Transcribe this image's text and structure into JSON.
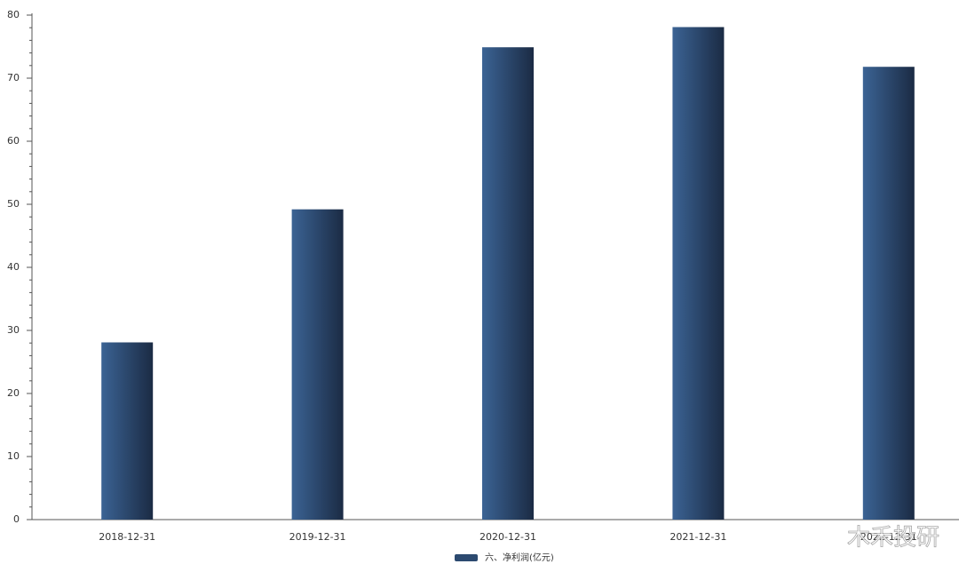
{
  "chart_data": {
    "type": "bar",
    "categories": [
      "2018-12-31",
      "2019-12-31",
      "2020-12-31",
      "2021-12-31",
      "2022-12-31"
    ],
    "series": [
      {
        "name": "六、净利润(亿元)",
        "color": "#2c4a70",
        "values": [
          28.1,
          49.2,
          74.9,
          78.1,
          71.8
        ]
      }
    ],
    "ylim": [
      0,
      80
    ],
    "yticks": [
      0,
      10,
      20,
      30,
      40,
      50,
      60,
      70,
      80
    ],
    "yminorticks": [
      2,
      4,
      6,
      8,
      12,
      14,
      16,
      18,
      22,
      24,
      26,
      28,
      32,
      34,
      36,
      38,
      42,
      44,
      46,
      48,
      52,
      54,
      56,
      58,
      62,
      64,
      66,
      68,
      72,
      74,
      76,
      78
    ],
    "legend": "bottom",
    "watermark": "木禾投研"
  }
}
